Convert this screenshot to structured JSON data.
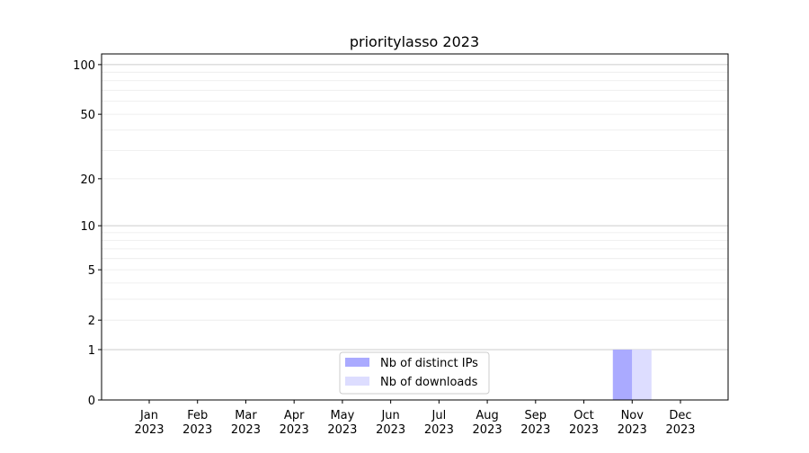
{
  "chart_data": {
    "type": "bar",
    "title": "prioritylasso 2023",
    "xlabel": "",
    "ylabel": "",
    "y_scale": "log(1+y)",
    "ylim": [
      0,
      116
    ],
    "yticks": [
      0,
      1,
      2,
      5,
      10,
      20,
      50,
      100
    ],
    "grid": true,
    "legend_position": "lower-center",
    "categories": [
      "Jan\n2023",
      "Feb\n2023",
      "Mar\n2023",
      "Apr\n2023",
      "May\n2023",
      "Jun\n2023",
      "Jul\n2023",
      "Aug\n2023",
      "Sep\n2023",
      "Oct\n2023",
      "Nov\n2023",
      "Dec\n2023"
    ],
    "series": [
      {
        "name": "Nb of distinct IPs",
        "color": "#aaaaff",
        "values": [
          0,
          0,
          0,
          0,
          0,
          0,
          0,
          0,
          0,
          0,
          1,
          0
        ]
      },
      {
        "name": "Nb of downloads",
        "color": "#ddddff",
        "values": [
          0,
          0,
          0,
          0,
          0,
          0,
          0,
          0,
          0,
          0,
          1,
          0
        ]
      }
    ]
  }
}
